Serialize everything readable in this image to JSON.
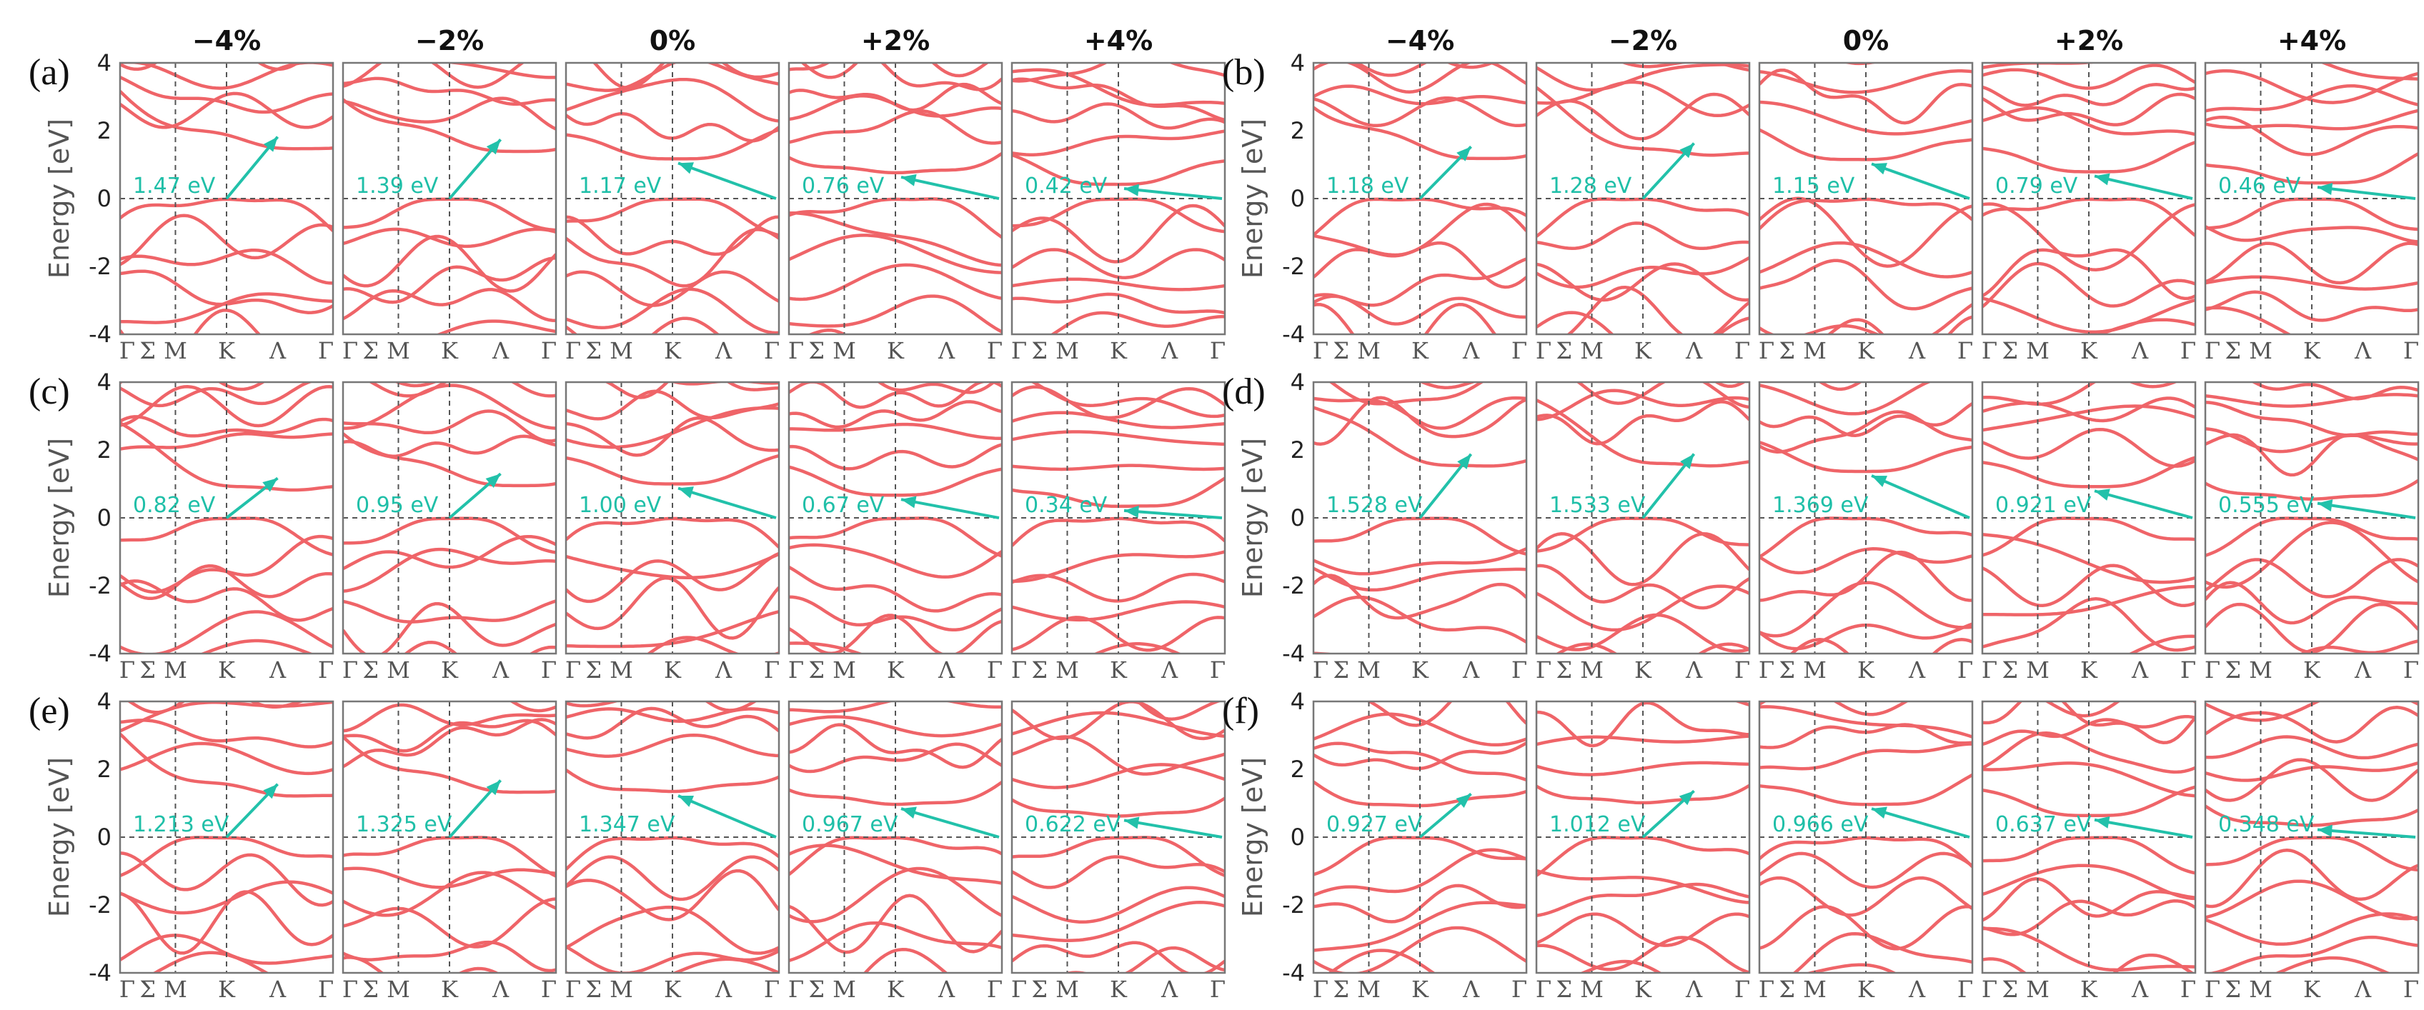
{
  "colors": {
    "band": "#ef6468",
    "arrow": "#22c1aa",
    "frame": "#777777",
    "guide": "#555555"
  },
  "chart_data": {
    "type": "line",
    "description_of_axes": "Electronic band structures vs. biaxial strain",
    "strains": [
      "−4%",
      "−2%",
      "0%",
      "+2%",
      "+4%"
    ],
    "kpath": [
      "Γ",
      "Σ",
      "M",
      "K",
      "Λ",
      "Γ"
    ],
    "ylabel": "Energy [eV]",
    "ylim": [
      -4,
      4
    ],
    "yticks": [
      "4",
      "2",
      "0",
      "-2",
      "-4"
    ],
    "panels": [
      {
        "letter": "(a)",
        "gaps": [
          "1.47 eV",
          "1.39 eV",
          "1.17 eV",
          "0.76 eV",
          "0.42 eV"
        ],
        "gap_values": [
          1.47,
          1.39,
          1.17,
          0.76,
          0.42
        ]
      },
      {
        "letter": "(b)",
        "gaps": [
          "1.18 eV",
          "1.28 eV",
          "1.15 eV",
          "0.79 eV",
          "0.46 eV"
        ],
        "gap_values": [
          1.18,
          1.28,
          1.15,
          0.79,
          0.46
        ]
      },
      {
        "letter": "(c)",
        "gaps": [
          "0.82 eV",
          "0.95 eV",
          "1.00 eV",
          "0.67 eV",
          "0.34 eV"
        ],
        "gap_values": [
          0.82,
          0.95,
          1.0,
          0.67,
          0.34
        ]
      },
      {
        "letter": "(d)",
        "gaps": [
          "1.528 eV",
          "1.533 eV",
          "1.369 eV",
          "0.921 eV",
          "0.555 eV"
        ],
        "gap_values": [
          1.528,
          1.533,
          1.369,
          0.921,
          0.555
        ]
      },
      {
        "letter": "(e)",
        "gaps": [
          "1.213 eV",
          "1.325 eV",
          "1.347 eV",
          "0.967 eV",
          "0.622 eV"
        ],
        "gap_values": [
          1.213,
          1.325,
          1.347,
          0.967,
          0.622
        ]
      },
      {
        "letter": "(f)",
        "gaps": [
          "0.927 eV",
          "1.012 eV",
          "0.966 eV",
          "0.637 eV",
          "0.348 eV"
        ],
        "gap_values": [
          0.927,
          1.012,
          0.966,
          0.637,
          0.348
        ]
      }
    ]
  }
}
